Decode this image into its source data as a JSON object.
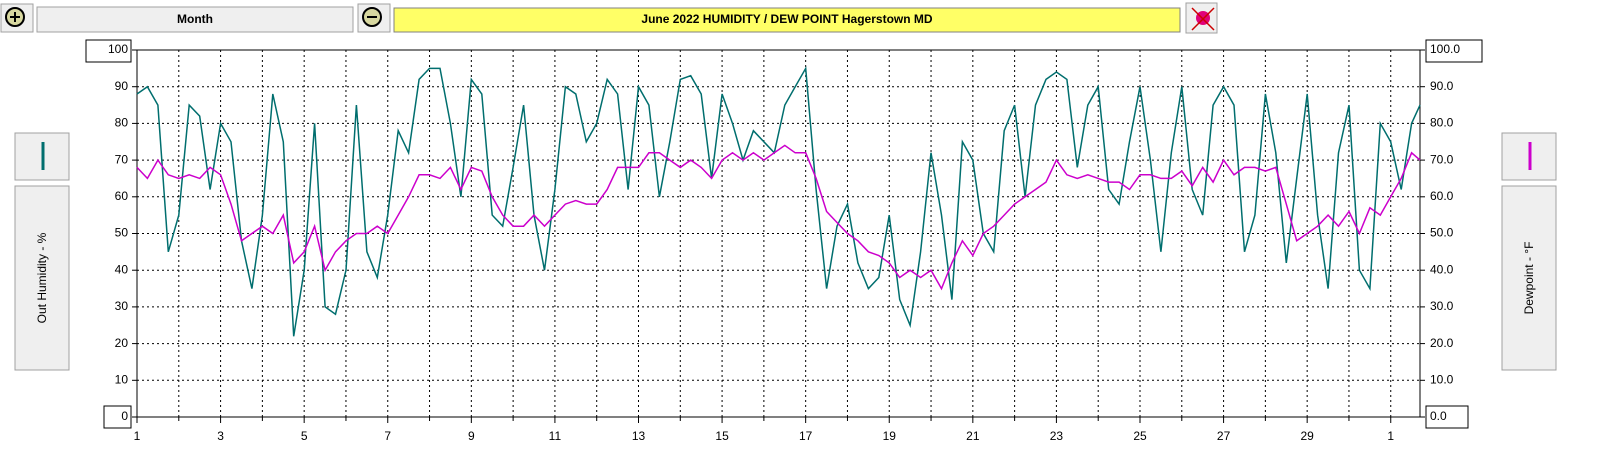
{
  "toolbar": {
    "range_button": "Month"
  },
  "chart_data": {
    "type": "line",
    "title": "June  2022   HUMIDITY / DEW POINT  Hagerstown MD",
    "x": [
      0,
      0.25,
      0.5,
      0.75,
      1,
      1.25,
      1.5,
      1.75,
      2,
      2.25,
      2.5,
      2.75,
      3,
      3.25,
      3.5,
      3.75,
      4,
      4.25,
      4.5,
      4.75,
      5,
      5.25,
      5.5,
      5.75,
      6,
      6.25,
      6.5,
      6.75,
      7,
      7.25,
      7.5,
      7.75,
      8,
      8.25,
      8.5,
      8.75,
      9,
      9.25,
      9.5,
      9.75,
      10,
      10.25,
      10.5,
      10.75,
      11,
      11.25,
      11.5,
      11.75,
      12,
      12.25,
      12.5,
      12.75,
      13,
      13.25,
      13.5,
      13.75,
      14,
      14.25,
      14.5,
      14.75,
      15,
      15.25,
      15.5,
      15.75,
      16,
      16.25,
      16.5,
      16.75,
      17,
      17.25,
      17.5,
      17.75,
      18,
      18.25,
      18.5,
      18.75,
      19,
      19.25,
      19.5,
      19.75,
      20,
      20.25,
      20.5,
      20.75,
      21,
      21.25,
      21.5,
      21.75,
      22,
      22.25,
      22.5,
      22.75,
      23,
      23.25,
      23.5,
      23.75,
      24,
      24.25,
      24.5,
      24.75,
      25,
      25.25,
      25.5,
      25.75,
      26,
      26.25,
      26.5,
      26.75,
      27,
      27.25,
      27.5,
      27.75,
      28,
      28.25,
      28.5,
      28.75,
      29,
      29.25,
      29.5,
      29.75,
      30,
      30.25,
      30.5,
      30.7
    ],
    "xlim": [
      0,
      30.7
    ],
    "xticks": [
      {
        "value": 0,
        "label": "1"
      },
      {
        "value": 2,
        "label": "3"
      },
      {
        "value": 4,
        "label": "5"
      },
      {
        "value": 6,
        "label": "7"
      },
      {
        "value": 8,
        "label": "9"
      },
      {
        "value": 10,
        "label": "11"
      },
      {
        "value": 12,
        "label": "13"
      },
      {
        "value": 14,
        "label": "15"
      },
      {
        "value": 16,
        "label": "17"
      },
      {
        "value": 18,
        "label": "19"
      },
      {
        "value": 20,
        "label": "21"
      },
      {
        "value": 22,
        "label": "23"
      },
      {
        "value": 24,
        "label": "25"
      },
      {
        "value": 26,
        "label": "27"
      },
      {
        "value": 28,
        "label": "29"
      },
      {
        "value": 30,
        "label": "1"
      }
    ],
    "xminorticks": [
      1,
      3,
      5,
      7,
      9,
      11,
      13,
      15,
      17,
      19,
      21,
      23,
      25,
      27,
      29
    ],
    "ylim": [
      0,
      100
    ],
    "yticks": [
      0,
      10,
      20,
      30,
      40,
      50,
      60,
      70,
      80,
      90,
      100
    ],
    "y2lim": [
      0,
      100
    ],
    "y2ticks": [
      {
        "value": 0,
        "label": "0.0"
      },
      {
        "value": 10,
        "label": "10.0"
      },
      {
        "value": 20,
        "label": "20.0"
      },
      {
        "value": 30,
        "label": "30.0"
      },
      {
        "value": 40,
        "label": "40.0"
      },
      {
        "value": 50,
        "label": "50.0"
      },
      {
        "value": 60,
        "label": "60.0"
      },
      {
        "value": 70,
        "label": "70.0"
      },
      {
        "value": 80,
        "label": "80.0"
      },
      {
        "value": 90,
        "label": "90.0"
      },
      {
        "value": 100,
        "label": "100.0"
      }
    ],
    "grid": true,
    "series": [
      {
        "name": "Out Humidity - %",
        "color": "#006e6e",
        "values": [
          88,
          90,
          85,
          45,
          55,
          85,
          82,
          62,
          80,
          75,
          48,
          35,
          55,
          88,
          75,
          22,
          40,
          80,
          30,
          28,
          40,
          85,
          45,
          38,
          55,
          78,
          72,
          92,
          95,
          95,
          80,
          60,
          92,
          88,
          55,
          52,
          68,
          85,
          55,
          40,
          62,
          90,
          88,
          75,
          80,
          92,
          88,
          62,
          90,
          85,
          60,
          75,
          92,
          93,
          88,
          65,
          88,
          80,
          70,
          78,
          75,
          72,
          85,
          90,
          95,
          62,
          35,
          52,
          58,
          42,
          35,
          38,
          55,
          32,
          25,
          45,
          72,
          55,
          32,
          75,
          70,
          50,
          45,
          78,
          85,
          60,
          85,
          92,
          94,
          92,
          68,
          85,
          90,
          62,
          58,
          75,
          90,
          70,
          45,
          72,
          90,
          62,
          55,
          85,
          90,
          85,
          45,
          55,
          88,
          72,
          42,
          65,
          88,
          55,
          35,
          72,
          85,
          40,
          35,
          80,
          75,
          62,
          80,
          85
        ]
      },
      {
        "name": "Dewpoint - °F",
        "color": "#cc00cc",
        "axis": "y2",
        "values": [
          68,
          65,
          70,
          66,
          65,
          66,
          65,
          68,
          66,
          58,
          48,
          50,
          52,
          50,
          55,
          42,
          45,
          52,
          40,
          45,
          48,
          50,
          50,
          52,
          50,
          55,
          60,
          66,
          66,
          65,
          68,
          62,
          68,
          67,
          60,
          55,
          52,
          52,
          55,
          52,
          55,
          58,
          59,
          58,
          58,
          62,
          68,
          68,
          68,
          72,
          72,
          70,
          68,
          70,
          68,
          65,
          70,
          72,
          70,
          72,
          70,
          72,
          74,
          72,
          72,
          65,
          56,
          53,
          50,
          48,
          45,
          44,
          42,
          38,
          40,
          38,
          40,
          35,
          42,
          48,
          44,
          50,
          52,
          55,
          58,
          60,
          62,
          64,
          70,
          66,
          65,
          66,
          65,
          64,
          64,
          62,
          66,
          66,
          65,
          65,
          67,
          63,
          68,
          64,
          70,
          66,
          68,
          68,
          67,
          68,
          58,
          48,
          50,
          52,
          55,
          52,
          56,
          50,
          57,
          55,
          60,
          65,
          72,
          70
        ]
      }
    ]
  }
}
